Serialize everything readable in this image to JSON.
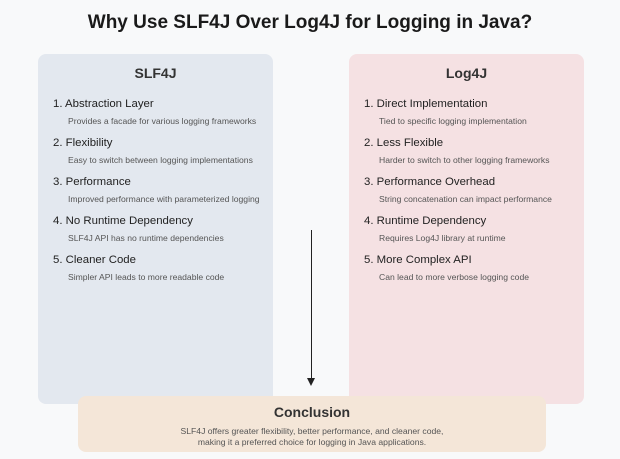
{
  "title": "Why Use SLF4J Over Log4J for Logging in Java?",
  "left": {
    "title": "SLF4J",
    "items": [
      {
        "head": "1. Abstraction Layer",
        "desc": "Provides a facade for various logging frameworks"
      },
      {
        "head": "2. Flexibility",
        "desc": "Easy to switch between logging implementations"
      },
      {
        "head": "3. Performance",
        "desc": "Improved performance with parameterized logging"
      },
      {
        "head": "4. No Runtime Dependency",
        "desc": "SLF4J API has no runtime dependencies"
      },
      {
        "head": "5. Cleaner Code",
        "desc": "Simpler API leads to more readable code"
      }
    ]
  },
  "right": {
    "title": "Log4J",
    "items": [
      {
        "head": "1. Direct Implementation",
        "desc": "Tied to specific logging implementation"
      },
      {
        "head": "2. Less Flexible",
        "desc": "Harder to switch to other logging frameworks"
      },
      {
        "head": "3. Performance Overhead",
        "desc": "String concatenation can impact performance"
      },
      {
        "head": "4. Runtime Dependency",
        "desc": "Requires Log4J library at runtime"
      },
      {
        "head": "5. More Complex API",
        "desc": "Can lead to more verbose logging code"
      }
    ]
  },
  "conclusion": {
    "title": "Conclusion",
    "line1": "SLF4J offers greater flexibility, better performance, and cleaner code,",
    "line2": "making it a preferred choice for logging in Java applications."
  },
  "colors": {
    "left_panel": "#e3e8ef",
    "right_panel": "#f5e1e3",
    "conclusion_box": "#f4e6d8"
  }
}
